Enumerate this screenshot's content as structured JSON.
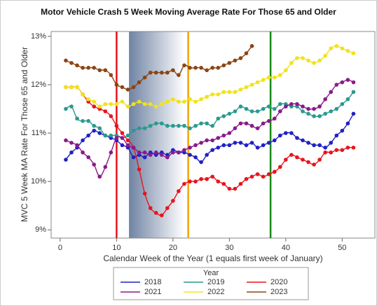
{
  "chart_data": {
    "type": "scatter-smooth",
    "title": "Motor Vehicle Crash 5 Week Moving Average Rate For Those 65 and Older",
    "x_label": "Calendar Week of the Year (1 equals first week of January)",
    "y_label": "MVC 5 Week MA Rate For Those 65 and Older",
    "xlim": [
      -1.6,
      55.8
    ],
    "ylim": [
      8.83,
      13.1
    ],
    "xticks": [
      0,
      10,
      20,
      30,
      40,
      50
    ],
    "yticks": [
      {
        "value": 9,
        "label": "9%"
      },
      {
        "value": 10,
        "label": "10%"
      },
      {
        "value": 11,
        "label": "11%"
      },
      {
        "value": 12,
        "label": "12%"
      },
      {
        "value": 13,
        "label": "13%"
      }
    ],
    "shaded_region": [
      12.2,
      22
    ],
    "reference_lines": [
      {
        "x": 10,
        "color": "#e8141c"
      },
      {
        "x": 22.7,
        "color": "#f5a300"
      },
      {
        "x": 37.3,
        "color": "#178a17"
      }
    ],
    "legend_title": "Year",
    "legend_position": "bottom",
    "x": [
      1,
      2,
      3,
      4,
      5,
      6,
      7,
      8,
      9,
      10,
      11,
      12,
      13,
      14,
      15,
      16,
      17,
      18,
      19,
      20,
      21,
      22,
      23,
      24,
      25,
      26,
      27,
      28,
      29,
      30,
      31,
      32,
      33,
      34,
      35,
      36,
      37,
      38,
      39,
      40,
      41,
      42,
      43,
      44,
      45,
      46,
      47,
      48,
      49,
      50,
      51,
      52
    ],
    "series": [
      {
        "name": "2018",
        "color": "#2121c4",
        "values": [
          10.45,
          10.6,
          10.7,
          10.85,
          10.95,
          11.05,
          11.0,
          10.95,
          10.9,
          10.85,
          10.75,
          10.7,
          10.5,
          10.55,
          10.5,
          10.6,
          10.55,
          10.6,
          10.55,
          10.65,
          10.6,
          10.6,
          10.55,
          10.5,
          10.4,
          10.55,
          10.65,
          10.7,
          10.75,
          10.75,
          10.8,
          10.8,
          10.75,
          10.8,
          10.7,
          10.75,
          10.8,
          10.85,
          10.95,
          11.0,
          11.0,
          10.9,
          10.85,
          10.8,
          10.75,
          10.75,
          10.7,
          10.8,
          10.95,
          11.05,
          11.2,
          11.4
        ]
      },
      {
        "name": "2019",
        "color": "#2a9a8f",
        "values": [
          11.5,
          11.55,
          11.3,
          11.25,
          11.25,
          11.15,
          11.1,
          10.95,
          10.95,
          10.95,
          10.9,
          10.95,
          11.05,
          11.1,
          11.1,
          11.15,
          11.2,
          11.2,
          11.15,
          11.15,
          11.15,
          11.15,
          11.1,
          11.15,
          11.2,
          11.2,
          11.15,
          11.3,
          11.35,
          11.4,
          11.45,
          11.55,
          11.5,
          11.45,
          11.45,
          11.5,
          11.55,
          11.5,
          11.6,
          11.6,
          11.55,
          11.55,
          11.45,
          11.4,
          11.35,
          11.35,
          11.4,
          11.45,
          11.5,
          11.6,
          11.7,
          11.85
        ]
      },
      {
        "name": "2020",
        "color": "#e8141c",
        "values": [
          11.95,
          11.95,
          11.95,
          11.8,
          11.65,
          11.55,
          11.5,
          11.45,
          11.35,
          11.15,
          11.0,
          10.85,
          10.7,
          10.25,
          9.75,
          9.45,
          9.35,
          9.3,
          9.45,
          9.6,
          9.8,
          9.95,
          10.0,
          10.0,
          10.05,
          10.05,
          10.1,
          10.0,
          9.95,
          9.85,
          9.85,
          9.95,
          10.05,
          10.1,
          10.15,
          10.1,
          10.15,
          10.2,
          10.3,
          10.45,
          10.55,
          10.5,
          10.45,
          10.4,
          10.35,
          10.45,
          10.6,
          10.6,
          10.65,
          10.65,
          10.7,
          10.7
        ]
      },
      {
        "name": "2021",
        "color": "#8a1a8a",
        "values": [
          10.85,
          10.8,
          10.75,
          10.6,
          10.5,
          10.35,
          10.1,
          10.3,
          10.6,
          10.9,
          10.9,
          10.75,
          10.7,
          10.6,
          10.6,
          10.55,
          10.6,
          10.55,
          10.5,
          10.6,
          10.6,
          10.65,
          10.7,
          10.75,
          10.8,
          10.85,
          10.85,
          10.9,
          10.95,
          11.0,
          11.1,
          11.2,
          11.2,
          11.15,
          11.1,
          11.2,
          11.25,
          11.3,
          11.45,
          11.55,
          11.6,
          11.6,
          11.55,
          11.5,
          11.5,
          11.55,
          11.7,
          11.85,
          12.0,
          12.05,
          12.1,
          12.05
        ]
      },
      {
        "name": "2022",
        "color": "#f2e21a",
        "values": [
          11.95,
          11.95,
          11.95,
          11.8,
          11.7,
          11.65,
          11.55,
          11.6,
          11.6,
          11.6,
          11.65,
          11.55,
          11.6,
          11.65,
          11.6,
          11.6,
          11.55,
          11.6,
          11.65,
          11.7,
          11.65,
          11.65,
          11.7,
          11.65,
          11.7,
          11.75,
          11.8,
          11.8,
          11.85,
          11.85,
          11.85,
          11.9,
          11.95,
          12.0,
          12.05,
          12.1,
          12.15,
          12.15,
          12.2,
          12.3,
          12.45,
          12.55,
          12.55,
          12.5,
          12.45,
          12.5,
          12.6,
          12.75,
          12.8,
          12.75,
          12.7,
          12.65
        ]
      },
      {
        "name": "2023",
        "color": "#8b4513",
        "values": [
          12.5,
          12.45,
          12.4,
          12.35,
          12.35,
          12.35,
          12.3,
          12.3,
          12.2,
          12.0,
          11.95,
          11.9,
          11.95,
          12.05,
          12.15,
          12.25,
          12.25,
          12.25,
          12.25,
          12.3,
          12.2,
          12.4,
          12.35,
          12.35,
          12.35,
          12.3,
          12.35,
          12.35,
          12.4,
          12.45,
          12.5,
          12.55,
          12.65,
          12.8,
          null,
          null,
          null,
          null,
          null,
          null,
          null,
          null,
          null,
          null,
          null,
          null,
          null,
          null,
          null,
          null,
          null,
          null
        ]
      }
    ]
  }
}
